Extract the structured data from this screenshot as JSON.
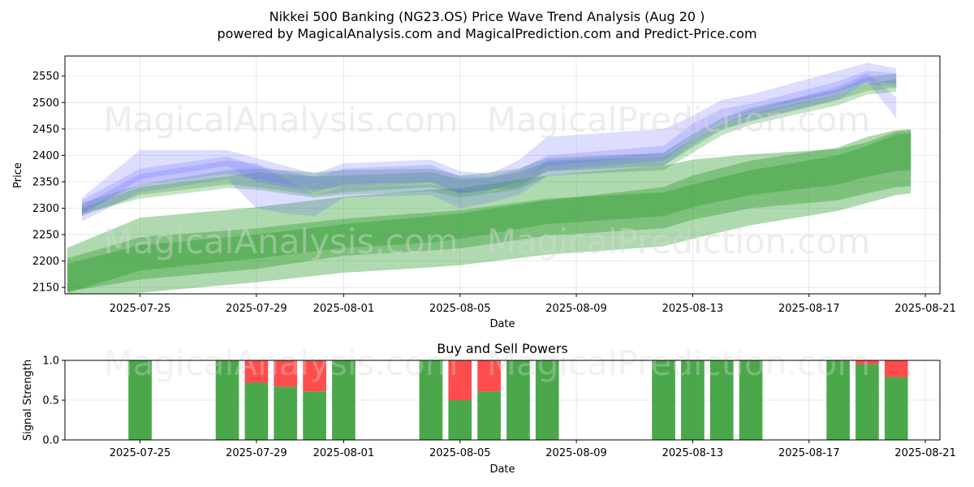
{
  "title_line1": "Nikkei 500 Banking (NG23.OS) Price Wave Trend Analysis (Aug 20 )",
  "title_line2": "powered by MagicalAnalysis.com and MagicalPrediction.com and Predict-Price.com",
  "watermarks": [
    "MagicalAnalysis.com",
    "MagicalPrediction.com"
  ],
  "colors": {
    "blue_band": "#6666ff",
    "green_band": "#2e9a2e",
    "buy": "#4aa84a",
    "sell": "#ff4d4d"
  },
  "chart_data": [
    {
      "type": "area",
      "title": "",
      "xlabel": "Date",
      "ylabel": "Price",
      "x_ticks": [
        "2025-07-25",
        "2025-07-29",
        "2025-08-01",
        "2025-08-05",
        "2025-08-09",
        "2025-08-13",
        "2025-08-17",
        "2025-08-21"
      ],
      "y_ticks": [
        2150,
        2200,
        2250,
        2300,
        2350,
        2400,
        2450,
        2500,
        2550
      ],
      "xlim": [
        "2025-07-22T10:00",
        "2025-08-21T12:00"
      ],
      "ylim": [
        2138,
        2588
      ],
      "grid": true,
      "series": [
        {
          "kind": "blue-band",
          "x": [
            "2025-07-23",
            "2025-07-25",
            "2025-07-28",
            "2025-07-29",
            "2025-07-31",
            "2025-08-01",
            "2025-08-04",
            "2025-08-05",
            "2025-08-06",
            "2025-08-07",
            "2025-08-08",
            "2025-08-12",
            "2025-08-13",
            "2025-08-14",
            "2025-08-15",
            "2025-08-18",
            "2025-08-19",
            "2025-08-20"
          ],
          "upper": [
            2315,
            2375,
            2398,
            2380,
            2360,
            2375,
            2382,
            2360,
            2360,
            2372,
            2400,
            2418,
            2460,
            2488,
            2498,
            2540,
            2560,
            2555
          ],
          "lower": [
            2292,
            2345,
            2365,
            2355,
            2335,
            2340,
            2348,
            2330,
            2335,
            2345,
            2370,
            2390,
            2430,
            2462,
            2475,
            2515,
            2535,
            2530
          ]
        },
        {
          "kind": "blue-band",
          "x": [
            "2025-07-23",
            "2025-07-25",
            "2025-07-28",
            "2025-07-29",
            "2025-07-31",
            "2025-08-01",
            "2025-08-04",
            "2025-08-05",
            "2025-08-06",
            "2025-08-07",
            "2025-08-08",
            "2025-08-12",
            "2025-08-13",
            "2025-08-14",
            "2025-08-15",
            "2025-08-18",
            "2025-08-19",
            "2025-08-20"
          ],
          "upper": [
            2320,
            2410,
            2410,
            2395,
            2365,
            2385,
            2392,
            2370,
            2365,
            2390,
            2435,
            2450,
            2475,
            2505,
            2515,
            2560,
            2575,
            2565
          ],
          "lower": [
            2285,
            2355,
            2380,
            2350,
            2330,
            2345,
            2350,
            2328,
            2332,
            2350,
            2380,
            2400,
            2440,
            2470,
            2482,
            2520,
            2540,
            2535
          ]
        },
        {
          "kind": "blue-band",
          "x": [
            "2025-07-23",
            "2025-07-25",
            "2025-07-28",
            "2025-07-29",
            "2025-07-30",
            "2025-07-31",
            "2025-08-01",
            "2025-08-04",
            "2025-08-05",
            "2025-08-06",
            "2025-08-07",
            "2025-08-08",
            "2025-08-12",
            "2025-08-13",
            "2025-08-14",
            "2025-08-15",
            "2025-08-18",
            "2025-08-19",
            "2025-08-20"
          ],
          "upper": [
            2305,
            2365,
            2390,
            2385,
            2355,
            2325,
            2340,
            2345,
            2335,
            2330,
            2345,
            2390,
            2405,
            2440,
            2470,
            2485,
            2530,
            2555,
            2510
          ],
          "lower": [
            2275,
            2330,
            2355,
            2300,
            2290,
            2285,
            2320,
            2325,
            2300,
            2310,
            2325,
            2360,
            2380,
            2420,
            2450,
            2465,
            2505,
            2540,
            2470
          ]
        },
        {
          "kind": "green-band",
          "x": [
            "2025-07-23",
            "2025-07-25",
            "2025-07-28",
            "2025-07-29",
            "2025-07-31",
            "2025-08-01",
            "2025-08-04",
            "2025-08-05",
            "2025-08-06",
            "2025-08-07",
            "2025-08-08",
            "2025-08-12",
            "2025-08-13",
            "2025-08-14",
            "2025-08-15",
            "2025-08-18",
            "2025-08-19",
            "2025-08-20"
          ],
          "upper": [
            2310,
            2345,
            2372,
            2375,
            2368,
            2372,
            2375,
            2362,
            2368,
            2375,
            2395,
            2405,
            2440,
            2470,
            2490,
            2525,
            2548,
            2555
          ],
          "lower": [
            2285,
            2325,
            2345,
            2340,
            2325,
            2330,
            2340,
            2328,
            2335,
            2340,
            2370,
            2380,
            2415,
            2448,
            2465,
            2505,
            2522,
            2528
          ]
        },
        {
          "kind": "green-band",
          "x": [
            "2025-07-23",
            "2025-07-25",
            "2025-07-28",
            "2025-07-29",
            "2025-07-31",
            "2025-08-01",
            "2025-08-04",
            "2025-08-05",
            "2025-08-06",
            "2025-08-07",
            "2025-08-08",
            "2025-08-12",
            "2025-08-13",
            "2025-08-14",
            "2025-08-15",
            "2025-08-18",
            "2025-08-19",
            "2025-08-20"
          ],
          "upper": [
            2300,
            2340,
            2360,
            2368,
            2360,
            2362,
            2368,
            2355,
            2358,
            2368,
            2388,
            2398,
            2430,
            2460,
            2480,
            2515,
            2535,
            2545
          ],
          "lower": [
            2290,
            2318,
            2338,
            2335,
            2320,
            2325,
            2332,
            2320,
            2328,
            2335,
            2362,
            2372,
            2405,
            2438,
            2458,
            2495,
            2515,
            2520
          ]
        },
        {
          "kind": "green-band",
          "x": [
            "2025-07-22T12:00",
            "2025-07-25",
            "2025-07-29",
            "2025-08-01",
            "2025-08-04",
            "2025-08-05",
            "2025-08-08",
            "2025-08-12",
            "2025-08-13",
            "2025-08-15",
            "2025-08-18",
            "2025-08-19",
            "2025-08-20",
            "2025-08-20T12:00"
          ],
          "upper": [
            2225,
            2282,
            2302,
            2322,
            2335,
            2338,
            2362,
            2380,
            2392,
            2402,
            2412,
            2425,
            2445,
            2448
          ],
          "lower": [
            2142,
            2165,
            2185,
            2210,
            2220,
            2224,
            2248,
            2262,
            2278,
            2300,
            2315,
            2328,
            2340,
            2342
          ]
        },
        {
          "kind": "green-band",
          "x": [
            "2025-07-22T12:00",
            "2025-07-25",
            "2025-07-29",
            "2025-08-01",
            "2025-08-04",
            "2025-08-05",
            "2025-08-08",
            "2025-08-12",
            "2025-08-13",
            "2025-08-15",
            "2025-08-18",
            "2025-08-19",
            "2025-08-20",
            "2025-08-20T12:00"
          ],
          "upper": [
            2205,
            2245,
            2262,
            2280,
            2292,
            2296,
            2318,
            2330,
            2345,
            2372,
            2400,
            2418,
            2440,
            2442
          ],
          "lower": [
            2120,
            2140,
            2160,
            2178,
            2188,
            2192,
            2212,
            2228,
            2242,
            2268,
            2295,
            2310,
            2325,
            2328
          ]
        },
        {
          "kind": "green-band",
          "x": [
            "2025-07-22T12:00",
            "2025-07-25",
            "2025-07-29",
            "2025-08-01",
            "2025-08-04",
            "2025-08-05",
            "2025-08-08",
            "2025-08-12",
            "2025-08-13",
            "2025-08-15",
            "2025-08-18",
            "2025-08-19",
            "2025-08-20",
            "2025-08-20T12:00"
          ],
          "upper": [
            2195,
            2230,
            2250,
            2270,
            2285,
            2290,
            2315,
            2340,
            2362,
            2390,
            2415,
            2435,
            2448,
            2450
          ],
          "lower": [
            2140,
            2182,
            2205,
            2225,
            2235,
            2242,
            2270,
            2285,
            2302,
            2325,
            2345,
            2360,
            2370,
            2372
          ]
        }
      ]
    },
    {
      "type": "bar",
      "title": "Buy and Sell Powers",
      "xlabel": "Date",
      "ylabel": "Signal Strength",
      "x_ticks": [
        "2025-07-25",
        "2025-07-29",
        "2025-08-01",
        "2025-08-05",
        "2025-08-09",
        "2025-08-13",
        "2025-08-17",
        "2025-08-21"
      ],
      "y_ticks": [
        "0.0",
        "0.5",
        "1.0"
      ],
      "ylim": [
        0,
        1
      ],
      "categories": [
        "2025-07-25",
        "2025-07-28",
        "2025-07-29",
        "2025-07-30",
        "2025-07-31",
        "2025-08-01",
        "2025-08-04",
        "2025-08-05",
        "2025-08-06",
        "2025-08-07",
        "2025-08-08",
        "2025-08-12",
        "2025-08-13",
        "2025-08-14",
        "2025-08-15",
        "2025-08-18",
        "2025-08-19",
        "2025-08-20"
      ],
      "series": [
        {
          "name": "Buy",
          "values": [
            1.0,
            1.0,
            0.72,
            0.67,
            0.61,
            1.0,
            1.0,
            0.5,
            0.61,
            1.0,
            1.0,
            1.0,
            1.0,
            1.0,
            1.0,
            1.0,
            0.95,
            0.79
          ]
        },
        {
          "name": "Sell",
          "values": [
            0.0,
            0.0,
            0.28,
            0.33,
            0.39,
            0.0,
            0.0,
            0.5,
            0.39,
            0.0,
            0.0,
            0.0,
            0.0,
            0.0,
            0.0,
            0.0,
            0.05,
            0.21
          ]
        }
      ]
    }
  ]
}
